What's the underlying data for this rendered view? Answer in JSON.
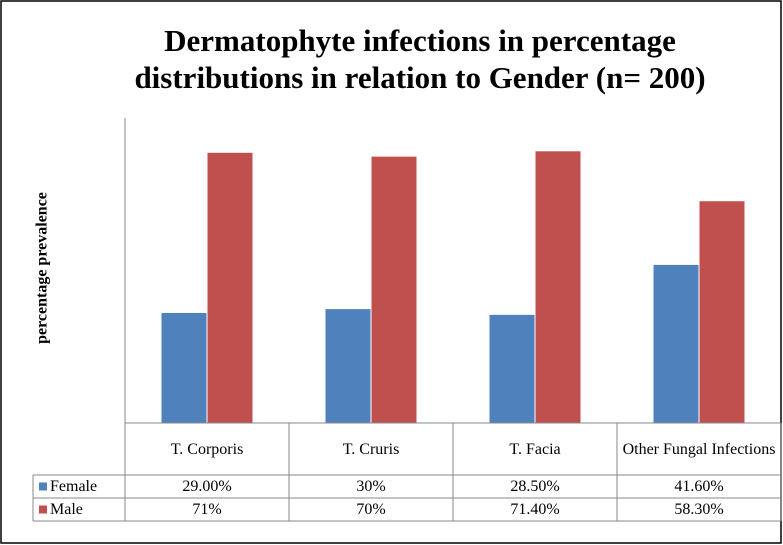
{
  "chart_data": {
    "type": "bar",
    "title": "Dermatophyte infections in percentage distributions in relation to Gender (n= 200)",
    "y_label": "percentage prevalence",
    "categories": [
      "T. Corporis",
      "T. Cruris",
      "T. Facia",
      "Other Fungal Infections"
    ],
    "series": [
      {
        "name": "Female",
        "color": "#4f81bd",
        "values": [
          29,
          30,
          28.5,
          41.6
        ],
        "value_labels": [
          "29.00%",
          "30%",
          "28.50%",
          "41.60%"
        ]
      },
      {
        "name": "Male",
        "color": "#c0504d",
        "values": [
          71,
          70,
          71.4,
          58.3
        ],
        "value_labels": [
          "71%",
          "70%",
          "71.40%",
          "58.30%"
        ]
      }
    ],
    "ylim": [
      0,
      80
    ]
  }
}
